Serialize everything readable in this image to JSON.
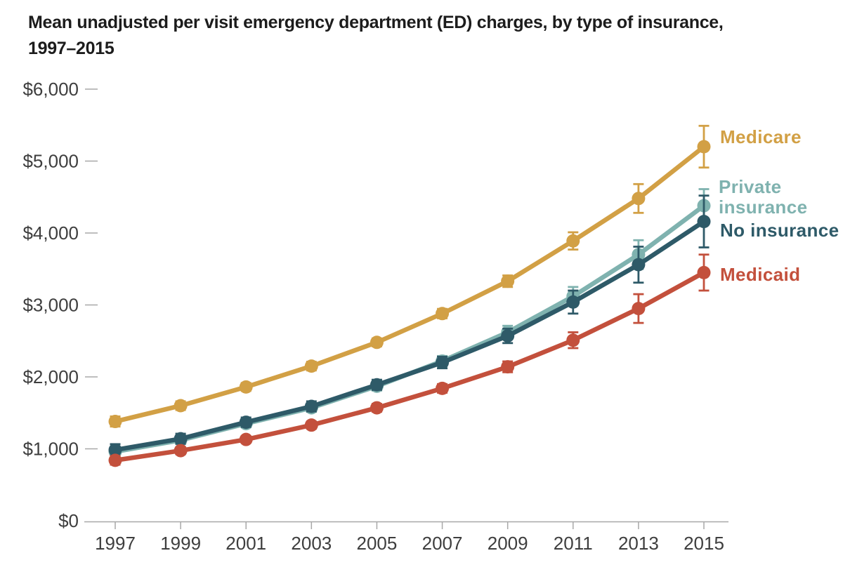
{
  "title_lines": [
    "Mean unadjusted per visit emergency department (ED) charges, by type of insurance,",
    "1997–2015"
  ],
  "chart_data": {
    "type": "line",
    "title": "Mean unadjusted per visit emergency department (ED) charges, by type of insurance, 1997–2015",
    "xlabel": "",
    "ylabel": "",
    "ylim": [
      0,
      6000
    ],
    "grid": false,
    "error_bars": true,
    "legend_position": "right",
    "x": [
      1997,
      1999,
      2001,
      2003,
      2005,
      2007,
      2009,
      2011,
      2013,
      2015
    ],
    "x_tick_labels": [
      "1997",
      "1999",
      "2001",
      "2003",
      "2005",
      "2007",
      "2009",
      "2011",
      "2013",
      "2015"
    ],
    "y_ticks": [
      {
        "label": "$6,000",
        "value": 6000
      },
      {
        "label": "$5,000",
        "value": 5000
      },
      {
        "label": "$4,000",
        "value": 4000
      },
      {
        "label": "$3,000",
        "value": 3000
      },
      {
        "label": "$2,000",
        "value": 2000
      },
      {
        "label": "$1,000",
        "value": 1000
      },
      {
        "label": "$0",
        "value": 0
      }
    ],
    "series": [
      {
        "name": "Medicare",
        "color": "#D2A045",
        "values": [
          1380,
          1600,
          1860,
          2150,
          2480,
          2880,
          3330,
          3890,
          4480,
          5200
        ],
        "errors": [
          70,
          60,
          55,
          60,
          55,
          65,
          80,
          120,
          200,
          290
        ]
      },
      {
        "name": "Private insurance",
        "color": "#7FB2AF",
        "values": [
          960,
          1120,
          1350,
          1570,
          1870,
          2220,
          2620,
          3120,
          3700,
          4380
        ],
        "errors": [
          60,
          50,
          50,
          55,
          60,
          70,
          90,
          130,
          200,
          230
        ]
      },
      {
        "name": "No insurance",
        "color": "#2E5A68",
        "values": [
          985,
          1140,
          1370,
          1590,
          1890,
          2200,
          2570,
          3040,
          3560,
          4160
        ],
        "errors": [
          80,
          70,
          65,
          70,
          70,
          80,
          100,
          160,
          250,
          360
        ]
      },
      {
        "name": "Medicaid",
        "color": "#C3503C",
        "values": [
          840,
          975,
          1130,
          1330,
          1570,
          1840,
          2140,
          2510,
          2950,
          3450
        ],
        "errors": [
          60,
          50,
          45,
          50,
          55,
          60,
          75,
          110,
          200,
          250
        ]
      }
    ],
    "draw_order": [
      1,
      2,
      0,
      3
    ]
  }
}
